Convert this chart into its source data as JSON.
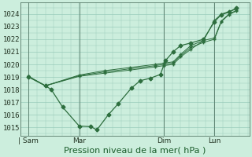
{
  "background_color": "#cceedd",
  "grid_color": "#99ccbb",
  "line_color": "#2d6e3e",
  "marker_color": "#2d6e3e",
  "ylabel_ticks": [
    1015,
    1016,
    1017,
    1018,
    1019,
    1020,
    1021,
    1022,
    1023,
    1024
  ],
  "ylim": [
    1014.3,
    1024.9
  ],
  "xlabel": "Pression niveau de la mer( hPa )",
  "xlabel_fontsize": 8,
  "tick_fontsize": 6.5,
  "xtick_labels": [
    "| Sam",
    "Mar",
    "Dim",
    "Lun"
  ],
  "xtick_positions": [
    0.0,
    2.0,
    5.33,
    7.33
  ],
  "xlim": [
    -0.3,
    8.7
  ],
  "main_series": {
    "x": [
      0.0,
      0.67,
      0.9,
      1.35,
      2.0,
      2.45,
      2.7,
      3.15,
      3.55,
      4.05,
      4.4,
      4.8,
      5.2,
      5.4,
      5.7,
      6.0,
      6.4,
      6.9,
      7.33,
      7.6,
      7.9,
      8.2
    ],
    "y": [
      1019.0,
      1018.3,
      1018.0,
      1016.6,
      1015.1,
      1015.05,
      1014.8,
      1016.0,
      1016.9,
      1018.1,
      1018.7,
      1018.9,
      1019.2,
      1020.3,
      1021.0,
      1021.5,
      1021.7,
      1022.0,
      1023.4,
      1023.95,
      1024.15,
      1024.5
    ],
    "marker": "D",
    "markersize": 2.5,
    "linewidth": 0.9
  },
  "forecast_series": [
    {
      "x": [
        0.0,
        0.67,
        2.0,
        3.0,
        4.0,
        5.0,
        5.33,
        5.7,
        6.0,
        6.4,
        6.9,
        7.33,
        7.6,
        7.9,
        8.2
      ],
      "y": [
        1019.05,
        1018.3,
        1019.05,
        1019.3,
        1019.55,
        1019.8,
        1019.9,
        1020.0,
        1020.6,
        1021.2,
        1021.9,
        1023.5,
        1024.0,
        1024.2,
        1024.4
      ],
      "marker": "+"
    },
    {
      "x": [
        0.0,
        0.67,
        2.0,
        3.0,
        4.0,
        5.0,
        5.33,
        5.7,
        6.0,
        6.4,
        6.9,
        7.33,
        7.6,
        7.9,
        8.2
      ],
      "y": [
        1019.05,
        1018.3,
        1019.1,
        1019.4,
        1019.65,
        1019.9,
        1020.0,
        1020.1,
        1020.7,
        1021.35,
        1021.75,
        1022.0,
        1023.4,
        1023.95,
        1024.25
      ],
      "marker": "+"
    },
    {
      "x": [
        0.0,
        0.67,
        2.0,
        3.0,
        4.0,
        5.0,
        5.33,
        5.7,
        6.0,
        6.4,
        6.9,
        7.33,
        7.6,
        7.9,
        8.2
      ],
      "y": [
        1019.05,
        1018.3,
        1019.15,
        1019.5,
        1019.75,
        1020.0,
        1020.1,
        1020.2,
        1020.8,
        1021.5,
        1021.9,
        1022.1,
        1023.45,
        1024.0,
        1024.3
      ],
      "marker": "+"
    }
  ],
  "forecast_markersize": 3,
  "forecast_linewidth": 0.7,
  "vlines_x": [
    0.0,
    2.0,
    5.33,
    7.33
  ],
  "vline_color": "#557766",
  "vline_linewidth": 0.6
}
